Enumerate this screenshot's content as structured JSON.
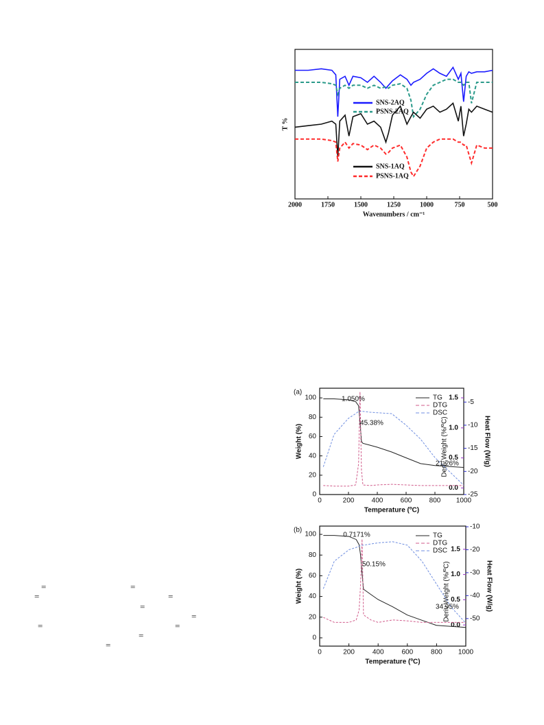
{
  "text_fragments": [
    "=",
    "=",
    "=",
    "=",
    "=",
    "=",
    "=",
    "=",
    "=",
    "="
  ],
  "chart_data": [
    {
      "type": "line",
      "xlabel": "Wavenumbers / cm⁻¹",
      "ylabel": "T %",
      "x": [
        2000,
        1900,
        1800,
        1720,
        1690,
        1675,
        1660,
        1620,
        1590,
        1560,
        1500,
        1450,
        1400,
        1350,
        1310,
        1290,
        1260,
        1200,
        1150,
        1120,
        1100,
        1050,
        1000,
        950,
        900,
        850,
        800,
        760,
        740,
        720,
        700,
        680,
        660,
        620,
        560,
        500
      ],
      "xlim": [
        2000,
        500
      ],
      "xticks": [
        2000,
        1750,
        1500,
        1250,
        1000,
        750,
        500
      ],
      "ylim": [
        0,
        100
      ],
      "series": [
        {
          "name": "SNS-2AQ",
          "color": "#1a1aff",
          "style": "solid",
          "values": [
            86,
            86,
            87,
            86,
            83,
            55,
            80,
            82,
            76,
            82,
            81,
            78,
            82,
            78,
            74,
            76,
            79,
            83,
            80,
            76,
            78,
            80,
            84,
            87,
            84,
            82,
            88,
            80,
            84,
            65,
            82,
            85,
            84,
            85,
            85,
            86
          ]
        },
        {
          "name": "PSNS-2AQ",
          "color": "#2a9a8a",
          "style": "dashed",
          "values": [
            78,
            78,
            78,
            77,
            76,
            70,
            74,
            76,
            74,
            76,
            76,
            74,
            76,
            74,
            75,
            74,
            76,
            77,
            74,
            66,
            55,
            60,
            70,
            76,
            78,
            80,
            80,
            78,
            78,
            76,
            78,
            78,
            64,
            78,
            78,
            78
          ]
        },
        {
          "name": "SNS-1AQ",
          "color": "#111111",
          "style": "solid",
          "values": [
            48,
            49,
            50,
            52,
            50,
            28,
            52,
            56,
            42,
            55,
            57,
            50,
            52,
            48,
            38,
            44,
            56,
            62,
            50,
            55,
            58,
            54,
            60,
            62,
            58,
            60,
            64,
            52,
            62,
            42,
            50,
            60,
            58,
            62,
            60,
            58
          ]
        },
        {
          "name": "PSNS-1AQ",
          "color": "#ff2a2a",
          "style": "dashed",
          "values": [
            40,
            40,
            40,
            39,
            38,
            25,
            34,
            38,
            34,
            37,
            36,
            33,
            36,
            34,
            30,
            31,
            34,
            36,
            28,
            18,
            15,
            22,
            34,
            38,
            40,
            40,
            40,
            38,
            38,
            36,
            36,
            30,
            24,
            36,
            34,
            34
          ]
        }
      ]
    },
    {
      "type": "line",
      "panel_label": "(a)",
      "xlabel": "Temperature (ºC)",
      "ylabel": "Weight (%)",
      "y2label": "Deriv.Weight (%/ºC)",
      "y3label": "Heat Flow (W/g)",
      "x": [
        25,
        100,
        200,
        250,
        270,
        280,
        290,
        300,
        350,
        400,
        500,
        600,
        700,
        800,
        900,
        1000
      ],
      "xlim": [
        0,
        1000
      ],
      "xticks": [
        0,
        200,
        400,
        600,
        800,
        1000
      ],
      "ylim": [
        0,
        110
      ],
      "yticks": [
        0,
        20,
        40,
        60,
        80,
        100
      ],
      "y2lim": [
        -0.11,
        1.66
      ],
      "y2ticks": [
        {
          "value": 0,
          "label": "0.0"
        },
        0.5,
        {
          "value": 1,
          "label": "1.0"
        },
        1.5
      ],
      "y2color": "#9932cc",
      "y3lim": [
        -25,
        -2
      ],
      "y3ticks": [
        -25,
        -20,
        -15,
        -10,
        -5
      ],
      "y3color": "#2a2acc",
      "annotations": [
        "1.050%",
        "45.38%",
        "21.26%"
      ],
      "series": [
        {
          "name": "TG",
          "color": "#222222",
          "style": "solid",
          "values": [
            99,
            99,
            98,
            96,
            92,
            75,
            55,
            53,
            51,
            49,
            44,
            38,
            32,
            30,
            29,
            28
          ]
        },
        {
          "name": "DTG",
          "color": "#d05a8a",
          "style": "dashed",
          "axis": "y2",
          "values": [
            0.04,
            0.03,
            0.03,
            0.05,
            0.4,
            1.6,
            0.3,
            0.05,
            0.04,
            0.05,
            0.06,
            0.05,
            0.04,
            0.04,
            0.04,
            0.04
          ]
        },
        {
          "name": "DSC",
          "color": "#6f8ee0",
          "style": "dashed",
          "axis": "y3",
          "values": [
            -19,
            -12,
            -8.5,
            -7.5,
            -7,
            -7,
            -7,
            -7,
            -7.2,
            -7.3,
            -7.5,
            -10,
            -13,
            -17,
            -20,
            -23
          ]
        }
      ]
    },
    {
      "type": "line",
      "panel_label": "(b)",
      "xlabel": "Temperature (ºC)",
      "ylabel": "Weight (%)",
      "y2label": "Deriv.Weight (%/ºC)",
      "y3label": "Heat Flow (W/g)",
      "x": [
        25,
        100,
        200,
        250,
        270,
        280,
        290,
        300,
        350,
        400,
        500,
        600,
        700,
        800,
        900,
        1000
      ],
      "xlim": [
        0,
        1000
      ],
      "xticks": [
        0,
        200,
        400,
        600,
        800,
        1000
      ],
      "ylim": [
        -8,
        108
      ],
      "yticks": [
        0,
        20,
        40,
        60,
        80,
        100
      ],
      "y2lim": [
        -0.42,
        1.96
      ],
      "y2ticks": [
        {
          "value": 0,
          "label": "0.0"
        },
        0.5,
        {
          "value": 1,
          "label": "1.0"
        },
        1.5
      ],
      "y2color": "#9932cc",
      "y3lim": [
        -62,
        -9.7
      ],
      "y3ticks": [
        -50,
        -40,
        -30,
        -20,
        -10
      ],
      "y3color": "#2a2acc",
      "annotations": [
        "0.7171%",
        "50.15%",
        "34.95%"
      ],
      "series": [
        {
          "name": "TG",
          "color": "#222222",
          "style": "solid",
          "values": [
            99,
            99,
            98,
            95,
            90,
            80,
            62,
            47,
            42,
            37,
            30,
            22,
            17,
            12,
            11,
            10
          ]
        },
        {
          "name": "DTG",
          "color": "#d05a8a",
          "style": "dashed",
          "axis": "y2",
          "values": [
            0.15,
            0.05,
            0.05,
            0.1,
            0.3,
            0.8,
            1.7,
            0.2,
            0.1,
            0.05,
            0.1,
            0.08,
            0.05,
            0.05,
            0.05,
            0.05
          ]
        },
        {
          "name": "DSC",
          "color": "#6f8ee0",
          "style": "dashed",
          "axis": "y3",
          "values": [
            -37,
            -25,
            -20,
            -19,
            -18.5,
            -18.2,
            -18,
            -18,
            -17.5,
            -17,
            -16.5,
            -18,
            -25,
            -35,
            -45,
            -52
          ]
        }
      ]
    }
  ]
}
